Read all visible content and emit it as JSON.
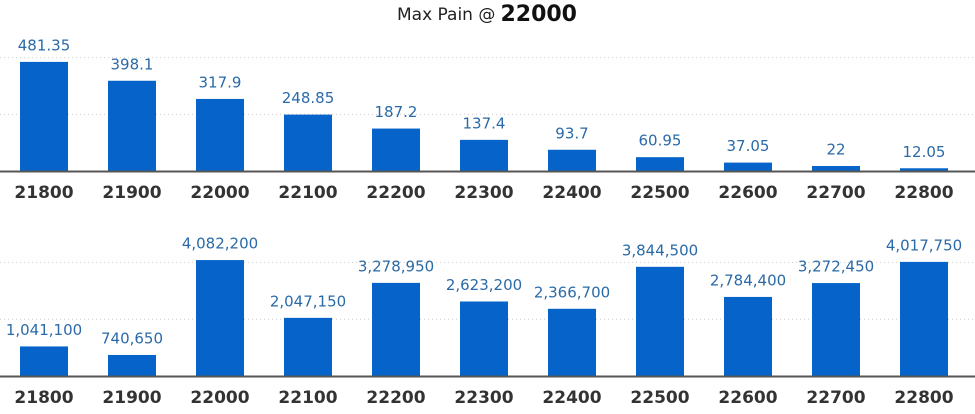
{
  "title": {
    "prefix": "Max Pain @",
    "strike": "22000"
  },
  "chart_data": [
    {
      "type": "bar",
      "categories": [
        "21800",
        "21900",
        "22000",
        "22100",
        "22200",
        "22300",
        "22400",
        "22500",
        "22600",
        "22700",
        "22800"
      ],
      "values": [
        481.35,
        398.1,
        317.9,
        248.85,
        187.2,
        137.4,
        93.7,
        60.95,
        37.05,
        22,
        12.05
      ],
      "color": "#0563c9",
      "ylim": [
        0,
        600
      ],
      "yticks": [
        0,
        250,
        500
      ],
      "grid": true
    },
    {
      "type": "bar",
      "categories": [
        "21800",
        "21900",
        "22000",
        "22100",
        "22200",
        "22300",
        "22400",
        "22500",
        "22600",
        "22700",
        "22800"
      ],
      "values": [
        1041100,
        740650,
        4082200,
        2047150,
        3278950,
        2623200,
        2366700,
        3844500,
        2784400,
        3272450,
        4017750
      ],
      "value_labels": [
        "1,041,100",
        "740,650",
        "4,082,200",
        "2,047,150",
        "3,278,950",
        "2,623,200",
        "2,366,700",
        "3,844,500",
        "2,784,400",
        "3,272,450",
        "4,017,750"
      ],
      "color": "#0563c9",
      "ylim": [
        0,
        5000000
      ],
      "yticks": [
        0,
        2000000,
        4000000
      ],
      "grid": true
    }
  ]
}
